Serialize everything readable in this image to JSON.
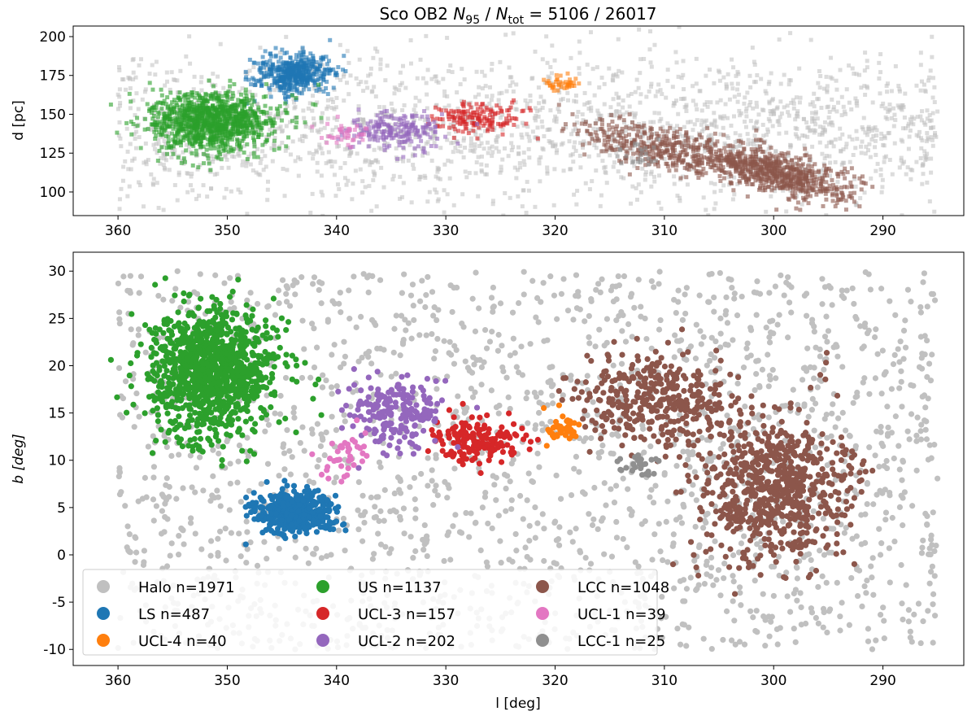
{
  "chart_data": [
    {
      "type": "scatter",
      "title": "Sco OB2  N95 / Ntot = 5106 / 26017",
      "title_parts": {
        "prefix": "Sco OB2",
        "n_num": "N",
        "n_num_sub": "95",
        "sep": " / ",
        "n_den": "N",
        "n_den_sub": "tot",
        "eq": " = 5106 / 26017"
      },
      "xlabel": "",
      "ylabel": "d [pc]",
      "xlim": [
        364.1,
        282.6
      ],
      "ylim": [
        84.8,
        206.8
      ],
      "xticks": [
        360,
        350,
        340,
        330,
        320,
        310,
        300,
        290
      ],
      "yticks": [
        100,
        125,
        150,
        175,
        200
      ],
      "marker": "square",
      "grid": false
    },
    {
      "type": "scatter",
      "title": "",
      "xlabel": "l [deg]",
      "ylabel": "b [deg]",
      "xlim": [
        364.1,
        282.6
      ],
      "ylim": [
        -11.7,
        32
      ],
      "xticks": [
        360,
        350,
        340,
        330,
        320,
        310,
        300,
        290
      ],
      "yticks": [
        -10,
        -5,
        0,
        5,
        10,
        15,
        20,
        25,
        30
      ],
      "marker": "circle",
      "grid": false,
      "legend_placement": "lower-left",
      "legend_columns": 3
    }
  ],
  "groups": [
    {
      "name": "Halo",
      "label": "Halo n=1971",
      "n": 1971,
      "color": "#c0c0c0",
      "l": [
        285,
        360
      ],
      "b": [
        -10,
        30
      ],
      "d_center": 140,
      "d_sd": 25,
      "uniform": true
    },
    {
      "name": "LS",
      "label": "LS n=487",
      "n": 487,
      "color": "#1f77b4",
      "l": 344,
      "l_sd": 1.8,
      "b": 4.5,
      "b_sd": 1.1,
      "d_center": 176,
      "d_sd": 6
    },
    {
      "name": "UCL-4",
      "label": "UCL-4 n=40",
      "n": 40,
      "color": "#ff7f0e",
      "l": 319.5,
      "l_sd": 0.8,
      "b": 13.5,
      "b_sd": 0.9,
      "d_center": 170,
      "d_sd": 3
    },
    {
      "name": "US",
      "label": "US n=1137",
      "n": 1137,
      "color": "#2ca02c",
      "l": 351.5,
      "l_sd": 2.8,
      "b": 19.5,
      "b_sd": 3.2,
      "d_center": 145,
      "d_sd": 9
    },
    {
      "name": "UCL-3",
      "label": "UCL-3 n=157",
      "n": 157,
      "color": "#d62728",
      "l": 327,
      "l_sd": 2,
      "b": 12,
      "b_sd": 1.2,
      "d_center": 148,
      "d_sd": 5
    },
    {
      "name": "UCL-2",
      "label": "UCL-2 n=202",
      "n": 202,
      "color": "#9467bd",
      "l": 334.5,
      "l_sd": 2.3,
      "b": 15,
      "b_sd": 1.8,
      "d_center": 140,
      "d_sd": 6
    },
    {
      "name": "LCC",
      "label": "LCC n=1048",
      "n": 1048,
      "color": "#8c564b",
      "l": 303,
      "l_sd": 5.5,
      "b": 9,
      "b_sd": 5,
      "d_center": 118,
      "d_sd": 7
    },
    {
      "name": "UCL-1",
      "label": "UCL-1 n=39",
      "n": 39,
      "color": "#e377c2",
      "l": 339,
      "l_sd": 1,
      "b": 10.5,
      "b_sd": 1.2,
      "d_center": 138,
      "d_sd": 4
    },
    {
      "name": "LCC-1",
      "label": "LCC-1 n=25",
      "n": 25,
      "color": "#8f8f8f",
      "l": 313,
      "l_sd": 1.2,
      "b": 9.5,
      "b_sd": 0.6,
      "d_center": 125,
      "d_sd": 4
    }
  ]
}
